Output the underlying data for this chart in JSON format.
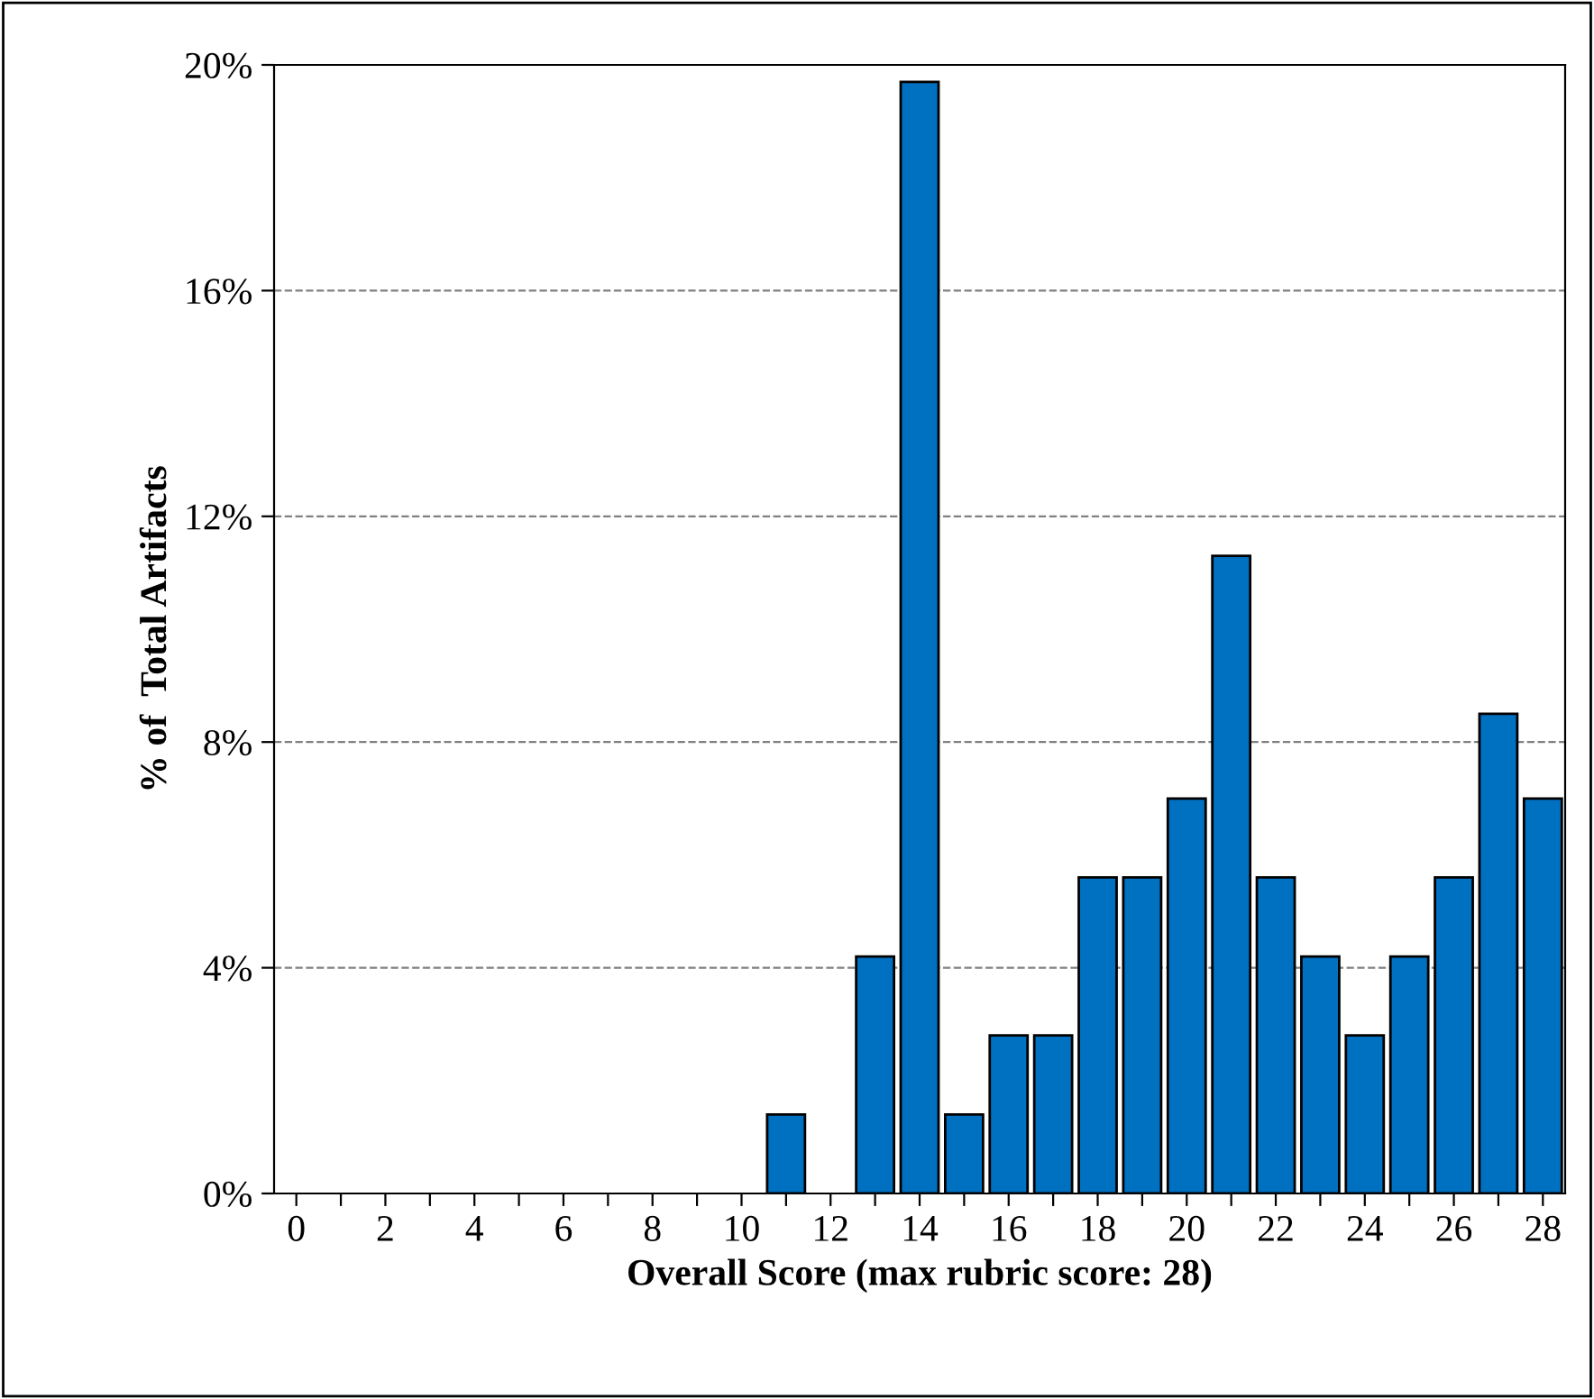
{
  "chart_data": {
    "type": "bar",
    "xlabel": "Overall Score (max rubric score: 28)",
    "ylabel": "% of  Total Artifacts",
    "categories": [
      "0",
      null,
      "2",
      null,
      "4",
      null,
      "6",
      null,
      "8",
      null,
      "10",
      null,
      "12",
      null,
      "14",
      null,
      "16",
      null,
      "18",
      null,
      "20",
      null,
      "22",
      null,
      "24",
      null,
      "26",
      null,
      "28"
    ],
    "values": [
      0,
      0,
      0,
      0,
      0,
      0,
      0,
      0,
      0,
      0,
      0,
      1.4,
      0,
      4.2,
      19.7,
      1.4,
      2.8,
      2.8,
      5.6,
      5.6,
      7.0,
      11.3,
      5.6,
      4.2,
      2.8,
      4.2,
      5.6,
      8.5,
      7.0
    ],
    "color": "#0070c0",
    "ylim": [
      0,
      20
    ],
    "yticks": [
      {
        "value": 0,
        "label": "0%"
      },
      {
        "value": 4,
        "label": "4%"
      },
      {
        "value": 8,
        "label": "8%"
      },
      {
        "value": 12,
        "label": "12%"
      },
      {
        "value": 16,
        "label": "16%"
      },
      {
        "value": 20,
        "label": "20%"
      }
    ],
    "grid": "y"
  }
}
